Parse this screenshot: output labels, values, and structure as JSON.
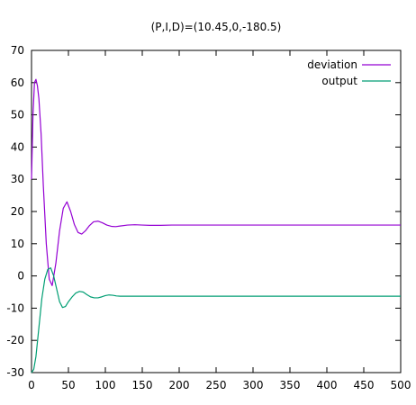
{
  "chart_data": {
    "type": "line",
    "title": "(P,I,D)=(10.45,0,-180.5)",
    "xlabel": "",
    "ylabel": "",
    "xlim": [
      0,
      500
    ],
    "ylim": [
      -30,
      70
    ],
    "x_ticks": [
      0,
      50,
      100,
      150,
      200,
      250,
      300,
      350,
      400,
      450,
      500
    ],
    "y_ticks": [
      -30,
      -20,
      -10,
      0,
      10,
      20,
      30,
      40,
      50,
      60,
      70
    ],
    "grid": false,
    "legend_position": "top-right",
    "series": [
      {
        "name": "deviation",
        "color": "#9400d3",
        "x": [
          0,
          2,
          4,
          6,
          8,
          10,
          13,
          16,
          20,
          24,
          28,
          33,
          38,
          43,
          48,
          53,
          58,
          63,
          68,
          73,
          78,
          84,
          90,
          96,
          102,
          108,
          114,
          120,
          130,
          140,
          150,
          160,
          175,
          190,
          210,
          250,
          300,
          350,
          400,
          450,
          500
        ],
        "y": [
          30,
          50,
          60,
          61,
          59,
          55,
          44,
          28,
          10,
          -1,
          -3,
          4,
          14,
          21,
          23,
          20,
          16,
          13.5,
          13,
          14,
          15.5,
          16.8,
          17,
          16.5,
          15.8,
          15.4,
          15.3,
          15.5,
          15.8,
          15.9,
          15.8,
          15.7,
          15.7,
          15.8,
          15.8,
          15.8,
          15.8,
          15.8,
          15.8,
          15.8,
          15.8
        ]
      },
      {
        "name": "output",
        "color": "#009e73",
        "x": [
          0,
          3,
          6,
          10,
          14,
          18,
          22,
          26,
          30,
          34,
          38,
          42,
          46,
          50,
          55,
          60,
          65,
          70,
          75,
          80,
          85,
          90,
          95,
          100,
          105,
          110,
          115,
          120,
          130,
          140,
          150,
          170,
          200,
          250,
          300,
          350,
          400,
          450,
          500
        ],
        "y": [
          -30,
          -29,
          -25,
          -16,
          -7,
          -1,
          2,
          2.5,
          0,
          -4,
          -8,
          -9.8,
          -9.5,
          -8,
          -6.5,
          -5.3,
          -4.8,
          -5,
          -5.8,
          -6.5,
          -6.8,
          -6.8,
          -6.5,
          -6.1,
          -5.9,
          -6,
          -6.2,
          -6.3,
          -6.3,
          -6.3,
          -6.3,
          -6.3,
          -6.3,
          -6.3,
          -6.3,
          -6.3,
          -6.3,
          -6.3,
          -6.3
        ]
      }
    ]
  }
}
